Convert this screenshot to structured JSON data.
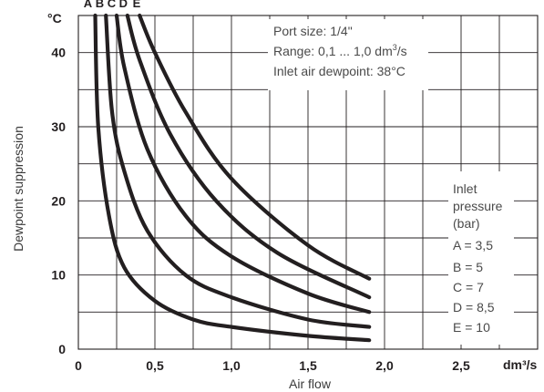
{
  "chart_data": {
    "type": "line",
    "xlabel": "Air flow",
    "ylabel": "Dewpoint suppression",
    "x_unit": "dm³/s",
    "y_unit": "°C",
    "xlim": [
      0,
      3.0
    ],
    "ylim": [
      0,
      45
    ],
    "x_ticks": [
      "0",
      "0,5",
      "1,0",
      "1,5",
      "2,0",
      "2,5"
    ],
    "y_ticks": [
      "0",
      "10",
      "20",
      "30",
      "40"
    ],
    "grid": true,
    "info": {
      "lines": [
        "Port size: 1/4\"",
        "Range: 0,1 ... 1,0 dm",
        "Inlet air dewpoint: 38°C"
      ],
      "range_unit": "3",
      "range_suffix": "/s"
    },
    "legend_title": [
      "Inlet",
      "pressure",
      "(bar)"
    ],
    "legend_entries": [
      "A = 3,5",
      "B = 5",
      "C = 7",
      "D = 8,5",
      "E = 10"
    ],
    "series": [
      {
        "name": "A",
        "points": [
          [
            0.11,
            45
          ],
          [
            0.13,
            30
          ],
          [
            0.2,
            18
          ],
          [
            0.3,
            11
          ],
          [
            0.5,
            6.5
          ],
          [
            0.75,
            4
          ],
          [
            1.0,
            3
          ],
          [
            1.5,
            1.8
          ],
          [
            1.9,
            1.2
          ]
        ]
      },
      {
        "name": "B",
        "points": [
          [
            0.18,
            45
          ],
          [
            0.22,
            32
          ],
          [
            0.3,
            24
          ],
          [
            0.45,
            16
          ],
          [
            0.7,
            10
          ],
          [
            1.0,
            7
          ],
          [
            1.5,
            4
          ],
          [
            1.9,
            3
          ]
        ]
      },
      {
        "name": "C",
        "points": [
          [
            0.25,
            45
          ],
          [
            0.3,
            38
          ],
          [
            0.45,
            27
          ],
          [
            0.7,
            18
          ],
          [
            1.0,
            12.5
          ],
          [
            1.5,
            7.5
          ],
          [
            1.9,
            5
          ]
        ]
      },
      {
        "name": "D",
        "points": [
          [
            0.32,
            45
          ],
          [
            0.4,
            39
          ],
          [
            0.6,
            29
          ],
          [
            0.9,
            20
          ],
          [
            1.3,
            13
          ],
          [
            1.9,
            7
          ]
        ]
      },
      {
        "name": "E",
        "points": [
          [
            0.4,
            45
          ],
          [
            0.5,
            40
          ],
          [
            0.7,
            32
          ],
          [
            1.0,
            23
          ],
          [
            1.5,
            14
          ],
          [
            1.9,
            9.5
          ]
        ]
      }
    ]
  }
}
